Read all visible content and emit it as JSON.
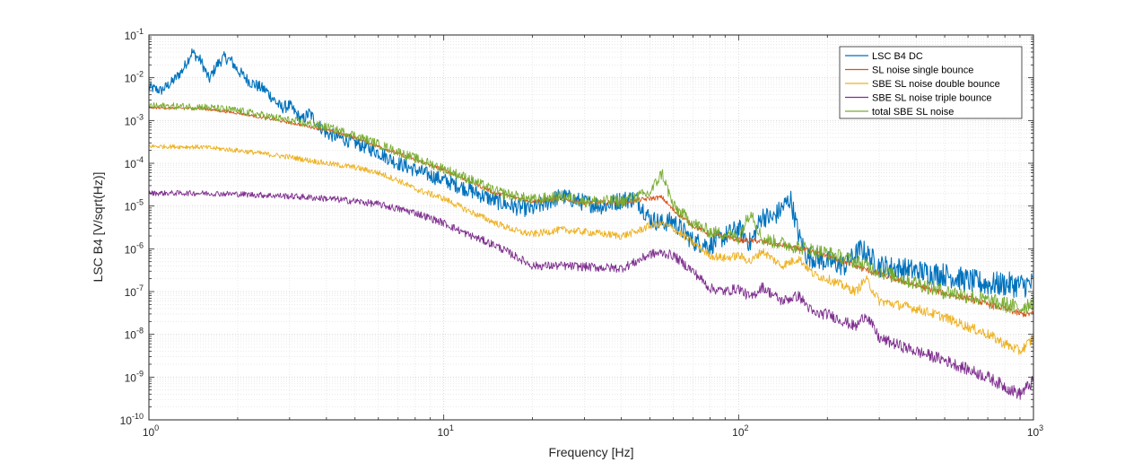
{
  "chart_data": {
    "type": "line",
    "title": "",
    "xlabel": "Frequency [Hz]",
    "ylabel": "LSC B4 [V/sqrt(Hz)]",
    "xscale": "log",
    "yscale": "log",
    "xlim": [
      1,
      1000
    ],
    "ylim": [
      1e-10,
      0.1
    ],
    "grid": true,
    "legend_position": "top-right",
    "x_ticks": [
      {
        "base": "10",
        "exp": "0"
      },
      {
        "base": "10",
        "exp": "1"
      },
      {
        "base": "10",
        "exp": "2"
      },
      {
        "base": "10",
        "exp": "3"
      }
    ],
    "y_ticks": [
      {
        "base": "10",
        "exp": "-10"
      },
      {
        "base": "10",
        "exp": "-9"
      },
      {
        "base": "10",
        "exp": "-8"
      },
      {
        "base": "10",
        "exp": "-7"
      },
      {
        "base": "10",
        "exp": "-6"
      },
      {
        "base": "10",
        "exp": "-5"
      },
      {
        "base": "10",
        "exp": "-4"
      },
      {
        "base": "10",
        "exp": "-3"
      },
      {
        "base": "10",
        "exp": "-2"
      },
      {
        "base": "10",
        "exp": "-1"
      }
    ],
    "series": [
      {
        "name": "LSC B4 DC",
        "color": "#0072BD",
        "noise": 0.12,
        "points": [
          [
            1,
            0.006
          ],
          [
            1.1,
            0.005
          ],
          [
            1.2,
            0.008
          ],
          [
            1.3,
            0.015
          ],
          [
            1.4,
            0.04
          ],
          [
            1.5,
            0.025
          ],
          [
            1.6,
            0.009
          ],
          [
            1.7,
            0.02
          ],
          [
            1.8,
            0.03
          ],
          [
            1.9,
            0.025
          ],
          [
            2,
            0.015
          ],
          [
            2.2,
            0.008
          ],
          [
            2.5,
            0.005
          ],
          [
            2.8,
            0.002
          ],
          [
            3,
            0.0022
          ],
          [
            3.3,
            0.001
          ],
          [
            3.5,
            0.0015
          ],
          [
            3.7,
            0.0009
          ],
          [
            4,
            0.0005
          ],
          [
            5,
            0.0003
          ],
          [
            6,
            0.00018
          ],
          [
            7,
            0.0001
          ],
          [
            8,
            7e-05
          ],
          [
            10,
            4e-05
          ],
          [
            12,
            2.5e-05
          ],
          [
            15,
            1.3e-05
          ],
          [
            18,
            9e-06
          ],
          [
            20,
            8.5e-06
          ],
          [
            25,
            1.7e-05
          ],
          [
            30,
            1.2e-05
          ],
          [
            35,
            1e-05
          ],
          [
            40,
            1.4e-05
          ],
          [
            45,
            1.5e-05
          ],
          [
            50,
            5e-06
          ],
          [
            55,
            4e-06
          ],
          [
            60,
            4.5e-06
          ],
          [
            70,
            1.5e-06
          ],
          [
            80,
            1.2e-06
          ],
          [
            90,
            2e-06
          ],
          [
            100,
            3e-06
          ],
          [
            110,
            1.3e-06
          ],
          [
            120,
            6e-06
          ],
          [
            130,
            5e-06
          ],
          [
            150,
            1.5e-05
          ],
          [
            160,
            2e-06
          ],
          [
            170,
            7e-07
          ],
          [
            200,
            5e-07
          ],
          [
            230,
            4e-07
          ],
          [
            260,
            1e-06
          ],
          [
            300,
            4e-07
          ],
          [
            350,
            3.5e-07
          ],
          [
            400,
            3e-07
          ],
          [
            500,
            2.5e-07
          ],
          [
            600,
            1.8e-07
          ],
          [
            700,
            1.5e-07
          ],
          [
            800,
            1.5e-07
          ],
          [
            900,
            1.4e-07
          ],
          [
            1000,
            1.5e-07
          ]
        ]
      },
      {
        "name": "SL noise single bounce",
        "color": "#D95319",
        "noise": 0.03,
        "points": [
          [
            1,
            0.002
          ],
          [
            1.5,
            0.0019
          ],
          [
            2,
            0.0015
          ],
          [
            3,
            0.0009
          ],
          [
            4,
            0.0006
          ],
          [
            5,
            0.0004
          ],
          [
            6,
            0.00025
          ],
          [
            8,
            0.00012
          ],
          [
            10,
            7e-05
          ],
          [
            12,
            4e-05
          ],
          [
            15,
            2e-05
          ],
          [
            20,
            1.3e-05
          ],
          [
            25,
            1.5e-05
          ],
          [
            30,
            1.2e-05
          ],
          [
            40,
            1.2e-05
          ],
          [
            50,
            1.5e-05
          ],
          [
            55,
            1.6e-05
          ],
          [
            60,
            8e-06
          ],
          [
            70,
            3.5e-06
          ],
          [
            80,
            2.2e-06
          ],
          [
            90,
            2e-06
          ],
          [
            100,
            1.6e-06
          ],
          [
            120,
            1.5e-06
          ],
          [
            150,
            1.1e-06
          ],
          [
            200,
            7e-07
          ],
          [
            250,
            4e-07
          ],
          [
            300,
            2.5e-07
          ],
          [
            400,
            1.4e-07
          ],
          [
            500,
            9e-08
          ],
          [
            600,
            7e-08
          ],
          [
            700,
            5e-08
          ],
          [
            800,
            4e-08
          ],
          [
            900,
            3e-08
          ],
          [
            1000,
            3e-08
          ]
        ]
      },
      {
        "name": "SBE SL noise double bounce",
        "color": "#EDB120",
        "noise": 0.05,
        "points": [
          [
            1,
            0.00025
          ],
          [
            1.5,
            0.00024
          ],
          [
            2,
            0.0002
          ],
          [
            3,
            0.00014
          ],
          [
            4,
            0.0001
          ],
          [
            5,
            8e-05
          ],
          [
            6,
            6e-05
          ],
          [
            7,
            4e-05
          ],
          [
            8,
            2.5e-05
          ],
          [
            10,
            1.5e-05
          ],
          [
            12,
            8e-06
          ],
          [
            15,
            4e-06
          ],
          [
            18,
            2.5e-06
          ],
          [
            20,
            2.2e-06
          ],
          [
            25,
            2.8e-06
          ],
          [
            30,
            2.5e-06
          ],
          [
            40,
            2e-06
          ],
          [
            45,
            2.5e-06
          ],
          [
            50,
            3.5e-06
          ],
          [
            55,
            3.8e-06
          ],
          [
            60,
            3e-06
          ],
          [
            70,
            1.4e-06
          ],
          [
            80,
            7e-07
          ],
          [
            90,
            6e-07
          ],
          [
            100,
            7e-07
          ],
          [
            110,
            5e-07
          ],
          [
            120,
            9e-07
          ],
          [
            140,
            4e-07
          ],
          [
            160,
            6e-07
          ],
          [
            180,
            2.5e-07
          ],
          [
            200,
            2e-07
          ],
          [
            250,
            1e-07
          ],
          [
            270,
            2e-07
          ],
          [
            300,
            6e-08
          ],
          [
            400,
            4e-08
          ],
          [
            500,
            2.5e-08
          ],
          [
            600,
            1.5e-08
          ],
          [
            700,
            1e-08
          ],
          [
            800,
            6e-09
          ],
          [
            900,
            4e-09
          ],
          [
            1000,
            8e-09
          ]
        ]
      },
      {
        "name": "SBE SL noise triple bounce",
        "color": "#7E2F8E",
        "noise": 0.06,
        "points": [
          [
            1,
            2e-05
          ],
          [
            1.5,
            2e-05
          ],
          [
            2,
            1.9e-05
          ],
          [
            3,
            1.7e-05
          ],
          [
            4,
            1.5e-05
          ],
          [
            5,
            1.3e-05
          ],
          [
            6,
            1.1e-05
          ],
          [
            8,
            7e-06
          ],
          [
            10,
            4e-06
          ],
          [
            12,
            2.2e-06
          ],
          [
            15,
            1.2e-06
          ],
          [
            18,
            6e-07
          ],
          [
            20,
            4e-07
          ],
          [
            25,
            4e-07
          ],
          [
            30,
            3.8e-07
          ],
          [
            40,
            3.5e-07
          ],
          [
            45,
            5e-07
          ],
          [
            50,
            7.5e-07
          ],
          [
            55,
            8e-07
          ],
          [
            60,
            7e-07
          ],
          [
            70,
            3e-07
          ],
          [
            80,
            1.2e-07
          ],
          [
            90,
            1e-07
          ],
          [
            100,
            1.2e-07
          ],
          [
            110,
            7e-08
          ],
          [
            120,
            1.3e-07
          ],
          [
            140,
            6e-08
          ],
          [
            160,
            8e-08
          ],
          [
            180,
            3e-08
          ],
          [
            200,
            3e-08
          ],
          [
            250,
            1.5e-08
          ],
          [
            270,
            3e-08
          ],
          [
            300,
            8e-09
          ],
          [
            400,
            4e-09
          ],
          [
            500,
            2.5e-09
          ],
          [
            600,
            1.5e-09
          ],
          [
            700,
            1e-09
          ],
          [
            800,
            6e-10
          ],
          [
            900,
            4e-10
          ],
          [
            1000,
            8e-10
          ]
        ]
      },
      {
        "name": "total SBE SL noise",
        "color": "#77AC30",
        "noise": 0.08,
        "points": [
          [
            1,
            0.0022
          ],
          [
            1.5,
            0.0021
          ],
          [
            2,
            0.0017
          ],
          [
            3,
            0.001
          ],
          [
            4,
            0.0007
          ],
          [
            5,
            0.00045
          ],
          [
            6,
            0.00028
          ],
          [
            8,
            0.00013
          ],
          [
            10,
            7.5e-05
          ],
          [
            12,
            4.5e-05
          ],
          [
            15,
            2.2e-05
          ],
          [
            20,
            1.4e-05
          ],
          [
            25,
            1.7e-05
          ],
          [
            30,
            1.3e-05
          ],
          [
            40,
            1.3e-05
          ],
          [
            50,
            2e-05
          ],
          [
            55,
            6e-05
          ],
          [
            60,
            1e-05
          ],
          [
            70,
            4e-06
          ],
          [
            80,
            2.5e-06
          ],
          [
            90,
            2.2e-06
          ],
          [
            100,
            1.8e-06
          ],
          [
            110,
            8e-06
          ],
          [
            120,
            1.7e-06
          ],
          [
            150,
            1.2e-06
          ],
          [
            200,
            8e-07
          ],
          [
            250,
            5e-07
          ],
          [
            300,
            3e-07
          ],
          [
            400,
            1.6e-07
          ],
          [
            500,
            1e-07
          ],
          [
            600,
            8e-08
          ],
          [
            700,
            6e-08
          ],
          [
            800,
            5e-08
          ],
          [
            900,
            4e-08
          ],
          [
            1000,
            6e-08
          ]
        ]
      }
    ]
  }
}
